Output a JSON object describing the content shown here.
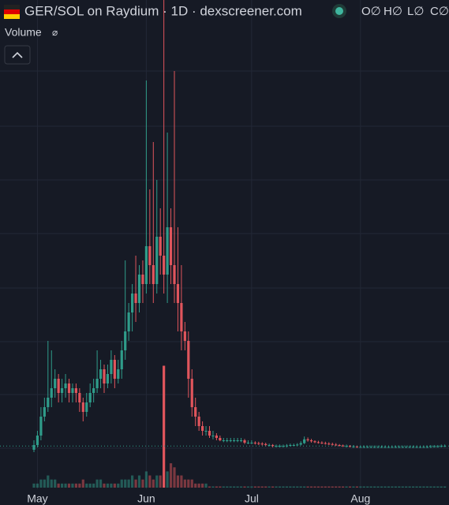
{
  "header": {
    "title": "GER/SOL on Raydium · 1D · dexscreener.com",
    "ohlc": [
      "O∅",
      "H∅",
      "L∅",
      "C∅"
    ],
    "volume_label": "Volume",
    "volume_icon": "⌀"
  },
  "chart_data": {
    "type": "candlestick",
    "up_color": "#2f9c8a",
    "down_color": "#e0555c",
    "ylim": [
      0,
      100
    ],
    "y2lim": [
      0,
      120
    ],
    "xlim": [
      -1,
      118
    ],
    "xticks": [
      {
        "value": 1,
        "label": "May"
      },
      {
        "value": 32,
        "label": "Jun"
      },
      {
        "value": 62,
        "label": "Jul"
      },
      {
        "value": 93,
        "label": "Aug"
      }
    ],
    "grid": true,
    "open": [
      5,
      6,
      8,
      12,
      14,
      16,
      18,
      20,
      17,
      18,
      19,
      17,
      18,
      17,
      15,
      13,
      15,
      17,
      18,
      20,
      22,
      19,
      21,
      24,
      20,
      22,
      26,
      30,
      34,
      38,
      36,
      42,
      40,
      48,
      44,
      40,
      50,
      46,
      42,
      52,
      44,
      40,
      36,
      30,
      28,
      20,
      14,
      12,
      10,
      9,
      9,
      8,
      8,
      7.5,
      7,
      7,
      7,
      7,
      7,
      7,
      7,
      6.5,
      6.5,
      6.5,
      6.4,
      6.3,
      6.2,
      6,
      6,
      5.8,
      5.8,
      5.8,
      5.8,
      5.9,
      6,
      6,
      6.1,
      6.4,
      7.2,
      7,
      6.8,
      6.6,
      6.5,
      6.4,
      6.3,
      6.2,
      6.1,
      6,
      5.9,
      5.8,
      5.8,
      5.7,
      5.7,
      5.6,
      5.6,
      5.6,
      5.6,
      5.6,
      5.6,
      5.6,
      5.6,
      5.6,
      5.6,
      5.6,
      5.6,
      5.6,
      5.6,
      5.6,
      5.6,
      5.6,
      5.6,
      5.6,
      5.6,
      5.6,
      5.7,
      5.7,
      5.7,
      5.8
    ],
    "high": [
      7,
      9,
      14,
      16,
      28,
      26,
      22,
      21,
      20,
      21,
      20,
      19,
      19,
      18,
      16,
      17,
      19,
      20,
      26,
      24,
      23,
      23,
      26,
      25,
      24,
      28,
      45,
      36,
      40,
      46,
      44,
      45,
      83,
      60,
      70,
      62,
      56,
      100,
      72,
      56,
      85,
      52,
      44,
      32,
      30,
      22,
      16,
      13,
      11,
      10,
      10,
      9,
      8.5,
      8,
      7.5,
      7.5,
      7.5,
      7.5,
      7.5,
      7.5,
      7.3,
      7,
      7,
      6.8,
      6.7,
      6.6,
      6.5,
      6.3,
      6.2,
      6.1,
      6.1,
      6.1,
      6.2,
      6.3,
      6.3,
      6.4,
      6.8,
      7.8,
      7.6,
      7.3,
      7,
      6.9,
      6.8,
      6.7,
      6.6,
      6.5,
      6.4,
      6.2,
      6.1,
      6.1,
      6,
      6,
      5.9,
      5.9,
      5.9,
      5.9,
      5.9,
      5.9,
      5.9,
      5.9,
      5.9,
      5.9,
      5.9,
      5.9,
      5.9,
      5.9,
      5.9,
      5.9,
      5.9,
      5.9,
      5.9,
      5.9,
      5.9,
      6,
      6,
      6,
      6.1,
      6.1
    ],
    "low": [
      4.5,
      5.5,
      7,
      11,
      13,
      14,
      16,
      15,
      15,
      16,
      15,
      15,
      15,
      13,
      11,
      12,
      14,
      15,
      17,
      18,
      17,
      18,
      19,
      18,
      19,
      20,
      24,
      28,
      30,
      32,
      34,
      36,
      38,
      40,
      36,
      38,
      42,
      38,
      36,
      40,
      36,
      30,
      26,
      26,
      16,
      12,
      10,
      9,
      8,
      8,
      7.5,
      7.2,
      7,
      6.8,
      6.6,
      6.6,
      6.6,
      6.6,
      6.6,
      6.6,
      6.2,
      6.2,
      6.2,
      6.1,
      6,
      5.9,
      5.7,
      5.7,
      5.5,
      5.5,
      5.5,
      5.5,
      5.5,
      5.7,
      5.8,
      5.8,
      5.9,
      6.2,
      6.7,
      6.5,
      6.4,
      6.3,
      6.2,
      6.1,
      6,
      5.9,
      5.8,
      5.7,
      5.6,
      5.5,
      5.5,
      5.4,
      5.4,
      5.4,
      5.4,
      5.4,
      5.4,
      5.4,
      5.4,
      5.4,
      5.4,
      5.4,
      5.4,
      5.4,
      5.4,
      5.4,
      5.4,
      5.4,
      5.4,
      5.4,
      5.4,
      5.4,
      5.4,
      5.4,
      5.5,
      5.5,
      5.5,
      5.6
    ],
    "close": [
      6,
      8,
      12,
      14,
      16,
      18,
      20,
      17,
      18,
      19,
      17,
      18,
      17,
      15,
      13,
      15,
      17,
      18,
      20,
      22,
      19,
      21,
      24,
      20,
      22,
      26,
      30,
      34,
      38,
      36,
      42,
      40,
      48,
      44,
      40,
      50,
      46,
      42,
      52,
      44,
      40,
      36,
      30,
      28,
      20,
      14,
      12,
      10,
      9,
      9,
      8,
      8,
      7.5,
      7,
      7,
      7,
      7,
      7,
      7,
      7,
      6.5,
      6.5,
      6.5,
      6.4,
      6.3,
      6.2,
      6,
      6,
      5.8,
      5.8,
      5.8,
      5.8,
      5.9,
      6,
      6,
      6.1,
      6.4,
      7.2,
      7,
      6.8,
      6.6,
      6.5,
      6.4,
      6.3,
      6.2,
      6.1,
      6,
      5.9,
      5.8,
      5.8,
      5.7,
      5.7,
      5.6,
      5.6,
      5.6,
      5.6,
      5.6,
      5.6,
      5.6,
      5.6,
      5.6,
      5.6,
      5.6,
      5.6,
      5.6,
      5.6,
      5.6,
      5.6,
      5.6,
      5.6,
      5.6,
      5.6,
      5.6,
      5.7,
      5.7,
      5.7,
      5.8,
      5.8
    ],
    "volume": [
      1,
      1,
      2,
      2,
      3,
      2,
      2,
      1,
      1,
      1,
      1,
      1,
      1,
      1,
      2,
      1,
      1,
      1,
      2,
      2,
      1,
      1,
      1,
      1,
      1,
      2,
      2,
      2,
      3,
      2,
      3,
      2,
      4,
      3,
      2,
      3,
      3,
      30,
      4,
      6,
      5,
      3,
      3,
      2,
      2,
      2,
      1,
      1,
      1,
      1,
      0.3,
      0.3,
      0.3,
      0.3,
      0.3,
      0.3,
      0.3,
      0.3,
      0.3,
      0.3,
      0.3,
      0.3,
      0.3,
      0.3,
      0.3,
      0.3,
      0.3,
      0.3,
      0.3,
      0.3,
      0.3,
      0.3,
      0.3,
      0.3,
      0.3,
      0.3,
      0.3,
      0.3,
      0.3,
      0.3,
      0.3,
      0.3,
      0.3,
      0.3,
      0.3,
      0.3,
      0.3,
      0.3,
      0.3,
      0.3,
      0.3,
      0.3,
      0.3,
      0.3,
      0.3,
      0.3,
      0.3,
      0.3,
      0.3,
      0.3,
      0.3,
      0.3,
      0.3,
      0.3,
      0.3,
      0.3,
      0.3,
      0.3,
      0.3,
      0.3,
      0.3,
      0.3,
      0.3,
      0.3,
      0.3,
      0.3,
      0.3,
      0.3
    ]
  }
}
